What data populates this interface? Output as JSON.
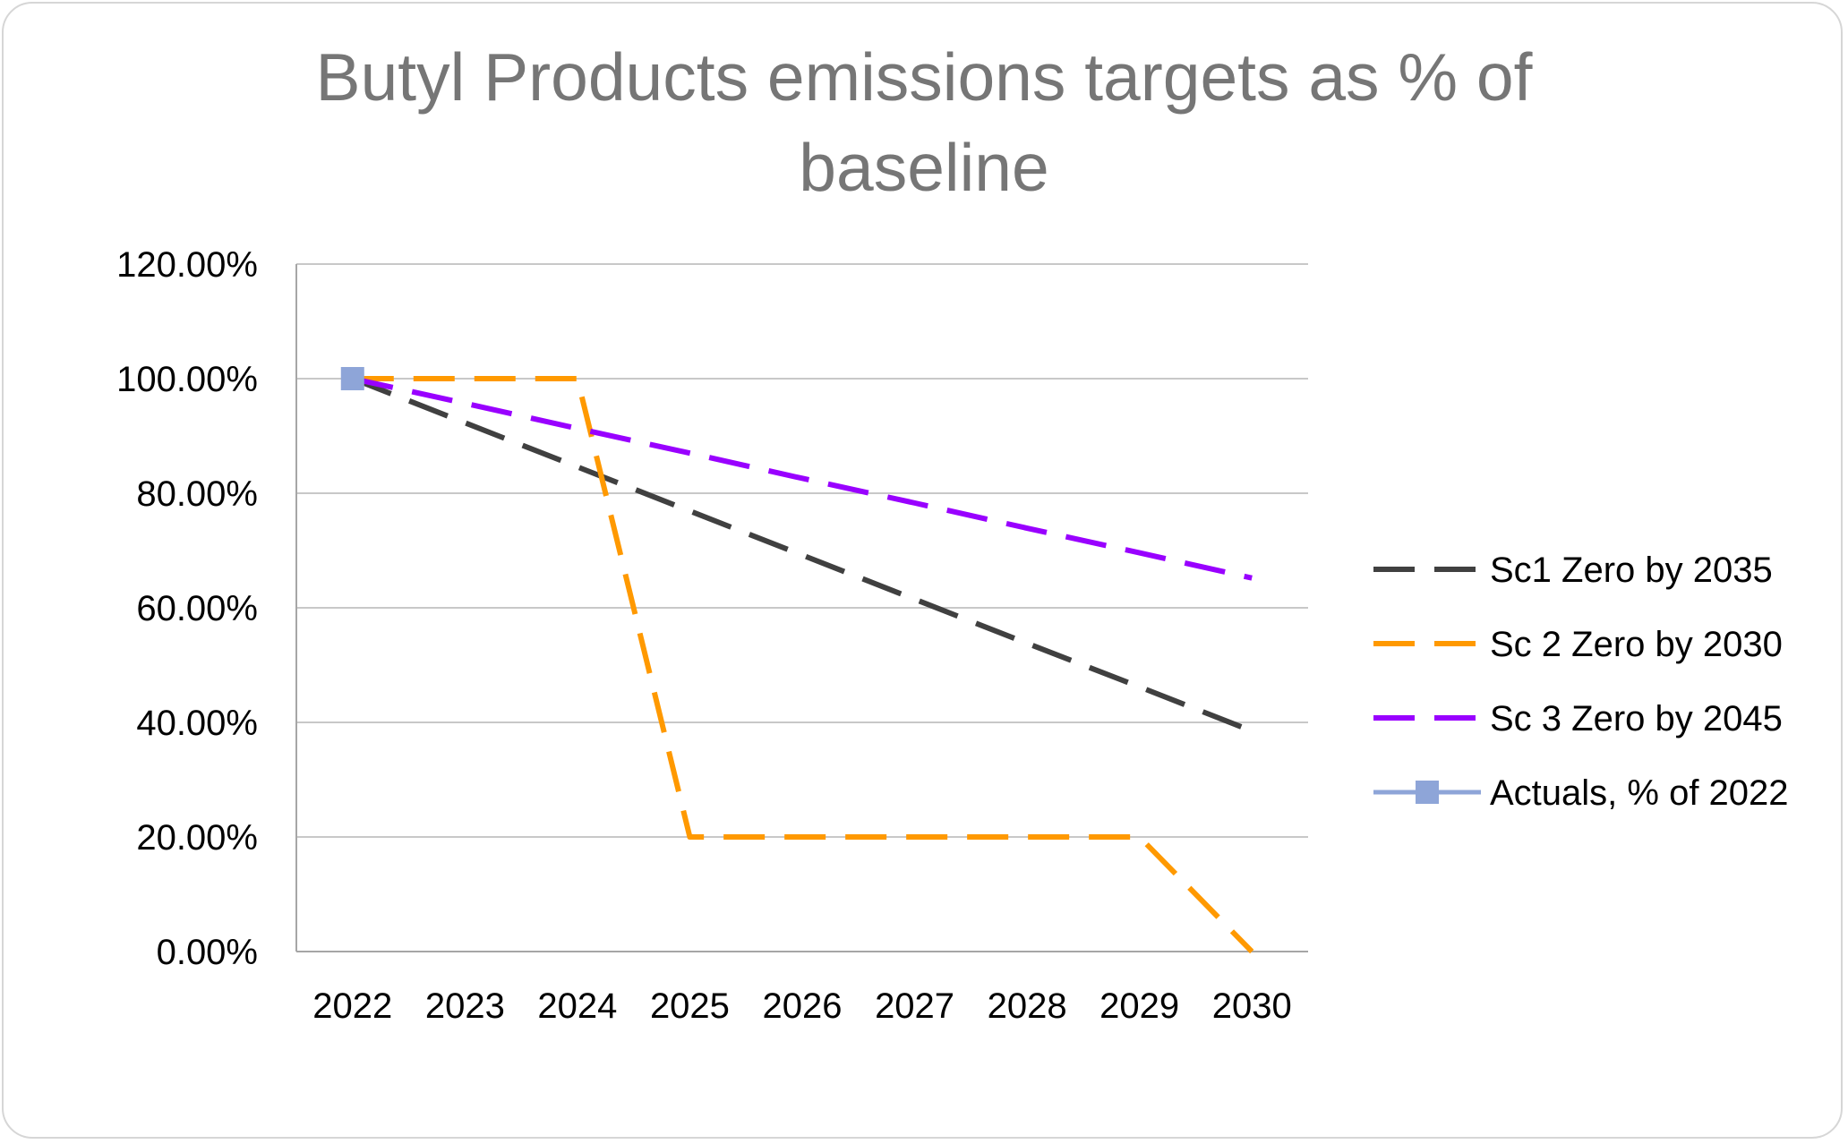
{
  "chart_data": {
    "type": "line",
    "title_lines": [
      "Butyl Products emissions targets as % of",
      "baseline"
    ],
    "xlabel": "",
    "ylabel": "",
    "categories": [
      "2022",
      "2023",
      "2024",
      "2025",
      "2026",
      "2027",
      "2028",
      "2029",
      "2030"
    ],
    "ylim": [
      0,
      1.2
    ],
    "y_ticks": [
      "0.00%",
      "20.00%",
      "40.00%",
      "60.00%",
      "80.00%",
      "100.00%",
      "120.00%"
    ],
    "grid": true,
    "legend_position": "right",
    "series": [
      {
        "name": "Sc1 Zero by 2035",
        "color": "#404040",
        "style": "dashed",
        "values": [
          1.0,
          0.923,
          0.846,
          0.769,
          0.692,
          0.615,
          0.538,
          0.462,
          0.385
        ]
      },
      {
        "name": "Sc 2 Zero by 2030",
        "color": "#FF9900",
        "style": "dashed",
        "values": [
          1.0,
          1.0,
          1.0,
          0.2,
          0.2,
          0.2,
          0.2,
          0.2,
          0.0
        ]
      },
      {
        "name": "Sc 3 Zero by 2045",
        "color": "#9900FF",
        "style": "dashed",
        "values": [
          1.0,
          0.957,
          0.913,
          0.87,
          0.826,
          0.783,
          0.739,
          0.696,
          0.652
        ]
      },
      {
        "name": "Actuals,  % of 2022",
        "color": "#8EA5D8",
        "style": "solid-marker",
        "values": [
          1.0,
          null,
          null,
          null,
          null,
          null,
          null,
          null,
          null
        ]
      }
    ]
  }
}
